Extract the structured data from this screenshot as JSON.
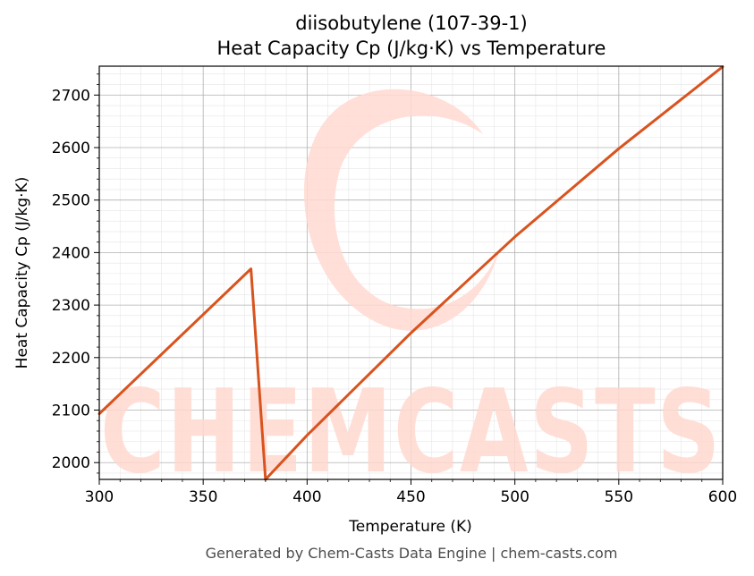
{
  "chart_data": {
    "type": "line",
    "title_line1": "diisobutylene (107-39-1)",
    "title_line2": "Heat Capacity Cp (J/kg·K) vs Temperature",
    "xlabel": "Temperature (K)",
    "ylabel": "Heat Capacity Cp (J/kg·K)",
    "xlim": [
      300,
      600
    ],
    "ylim": [
      1968,
      2755
    ],
    "x_ticks": [
      300,
      350,
      400,
      450,
      500,
      550,
      600
    ],
    "y_ticks": [
      2000,
      2100,
      2200,
      2300,
      2400,
      2500,
      2600,
      2700
    ],
    "grid": true,
    "series": [
      {
        "color": "#d9531e",
        "points": [
          [
            300,
            2093
          ],
          [
            373,
            2369
          ],
          [
            380,
            1968
          ],
          [
            400,
            2052
          ],
          [
            450,
            2247
          ],
          [
            500,
            2430
          ],
          [
            550,
            2598
          ],
          [
            600,
            2754
          ]
        ]
      }
    ]
  },
  "watermark": {
    "text": "CHEMCASTS",
    "color": "#ffd9d0"
  },
  "footer": "Generated by Chem-Casts Data Engine | chem-casts.com"
}
